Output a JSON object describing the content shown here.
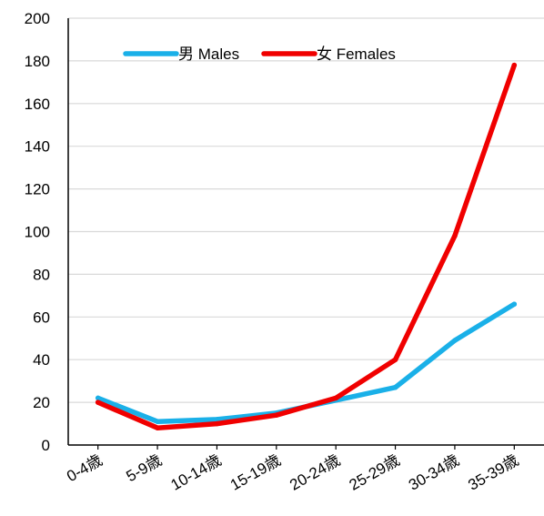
{
  "chart_data": {
    "type": "line",
    "categories": [
      "0-4歳",
      "5-9歳",
      "10-14歳",
      "15-19歳",
      "20-24歳",
      "25-29歳",
      "30-34歳",
      "35-39歳"
    ],
    "ylim": [
      0,
      200
    ],
    "yticks": [
      0,
      20,
      40,
      60,
      80,
      100,
      120,
      140,
      160,
      180,
      200
    ],
    "grid": true,
    "legend_position": "top",
    "series": [
      {
        "name": "男 Males",
        "color": "#1AB0E8",
        "values": [
          22,
          11,
          12,
          15,
          21,
          27,
          49,
          66
        ]
      },
      {
        "name": "女 Females",
        "color": "#F00000",
        "values": [
          20,
          8,
          10,
          14,
          22,
          40,
          98,
          178
        ]
      }
    ]
  }
}
